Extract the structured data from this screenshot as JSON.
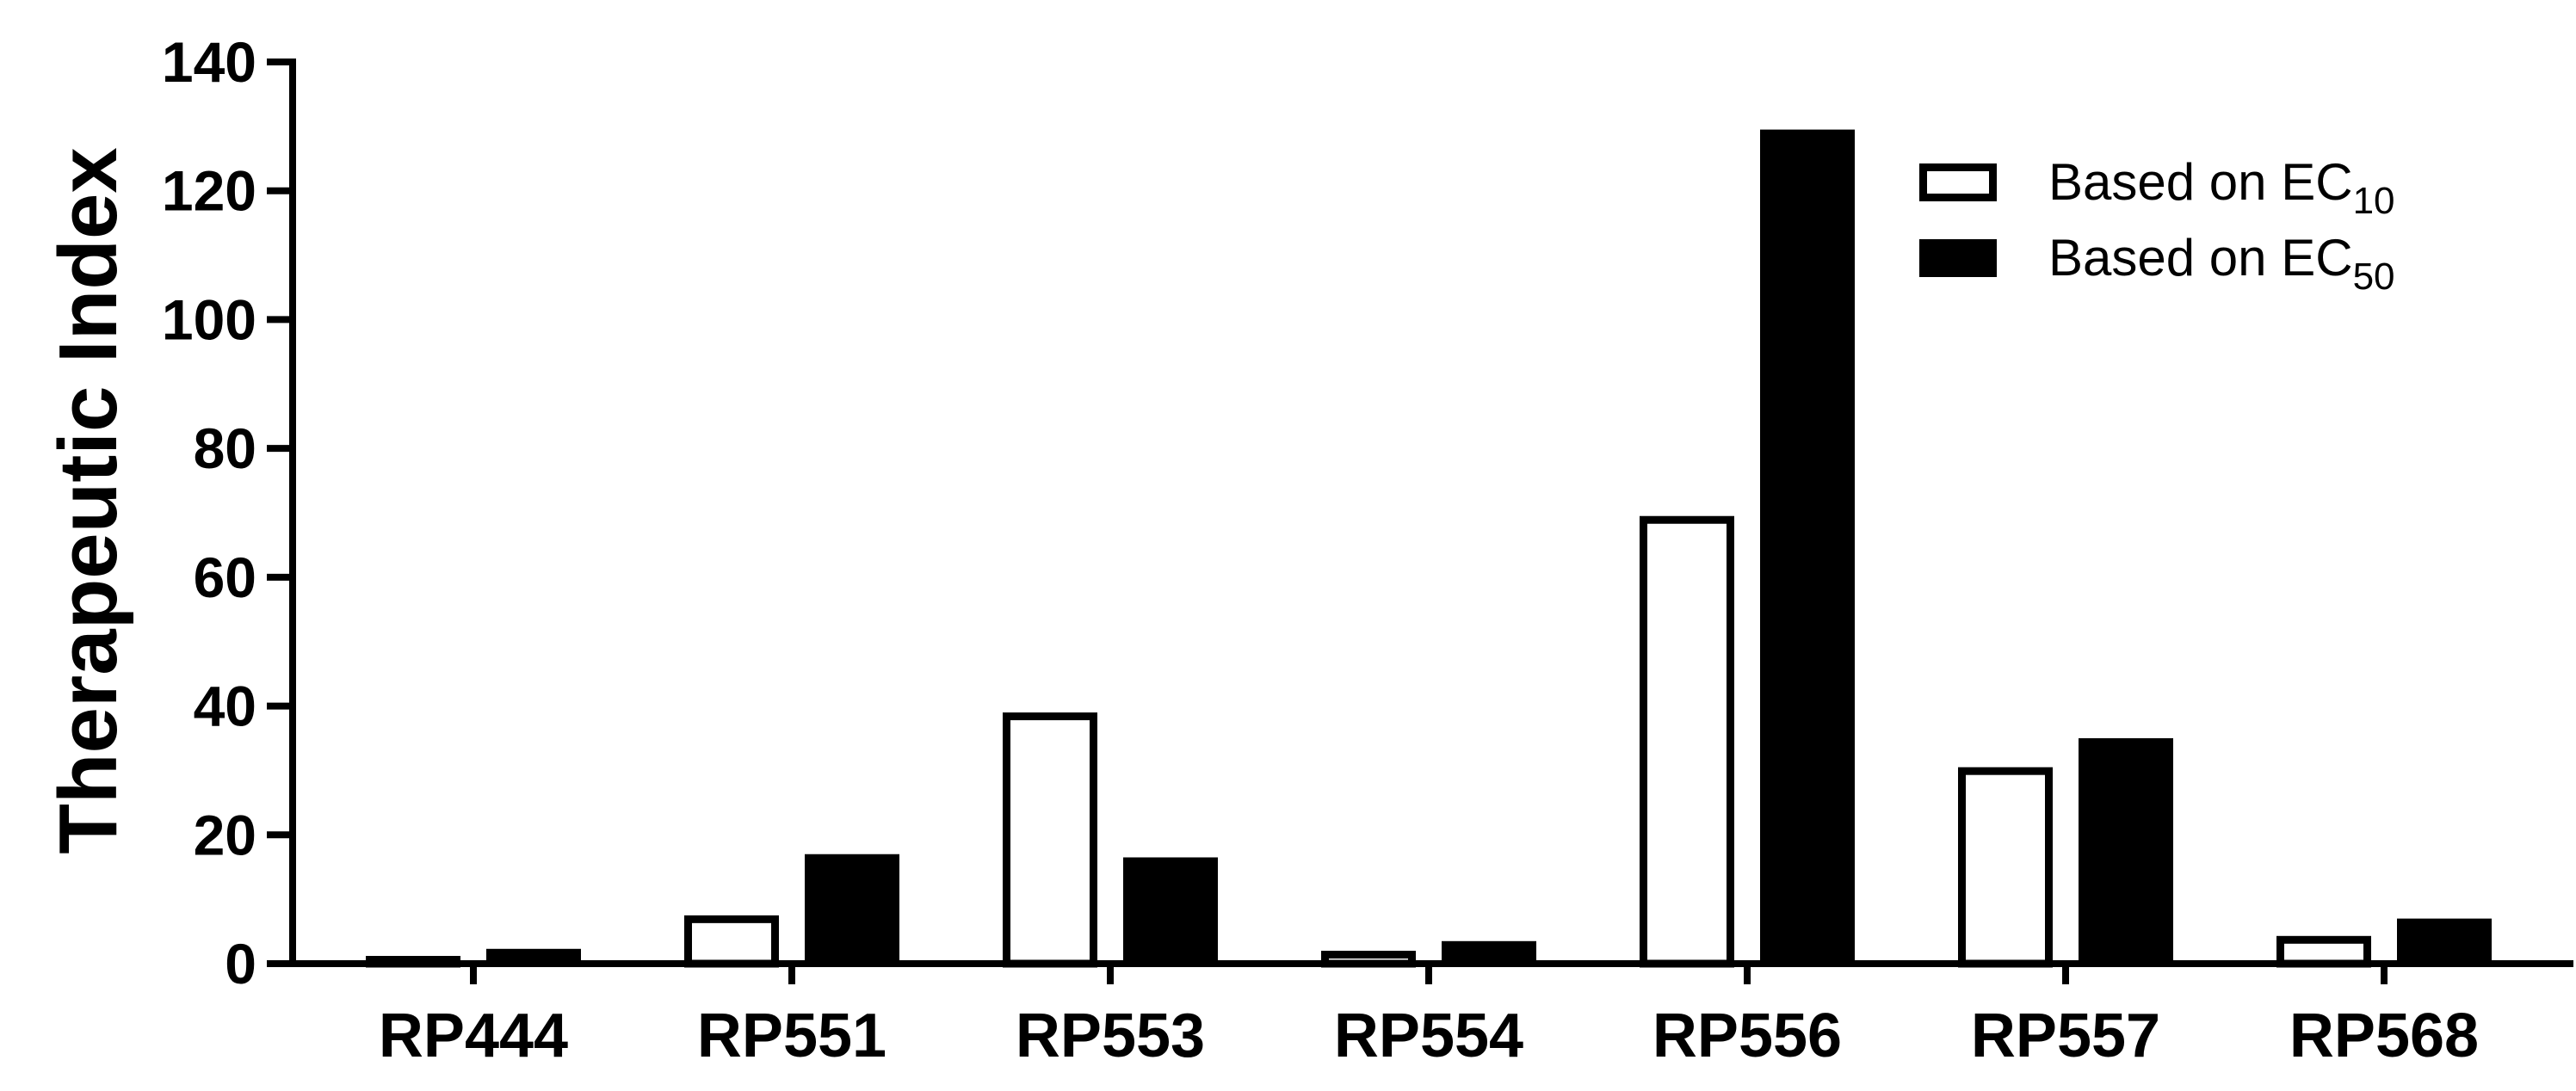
{
  "chart_data": {
    "type": "bar",
    "title": "",
    "xlabel": "",
    "ylabel": "Therapeutic Index",
    "ylim": [
      0,
      140
    ],
    "yticks": [
      0,
      20,
      40,
      60,
      80,
      100,
      120,
      140
    ],
    "grid": false,
    "legend_position": "top-right",
    "categories": [
      "RP444",
      "RP551",
      "RP553",
      "RP554",
      "RP556",
      "RP557",
      "RP568"
    ],
    "series": [
      {
        "name": "Based on EC10",
        "label_main": "Based on EC",
        "label_sub": "10",
        "style": "outline",
        "color": "#000000",
        "values": [
          1.2,
          7.5,
          39,
          2,
          69.5,
          30.5,
          4.3
        ]
      },
      {
        "name": "Based on EC50",
        "label_main": "Based on EC",
        "label_sub": "50",
        "style": "filled",
        "color": "#000000",
        "values": [
          2.3,
          17,
          16.5,
          3.5,
          129.5,
          35,
          7
        ]
      }
    ]
  }
}
